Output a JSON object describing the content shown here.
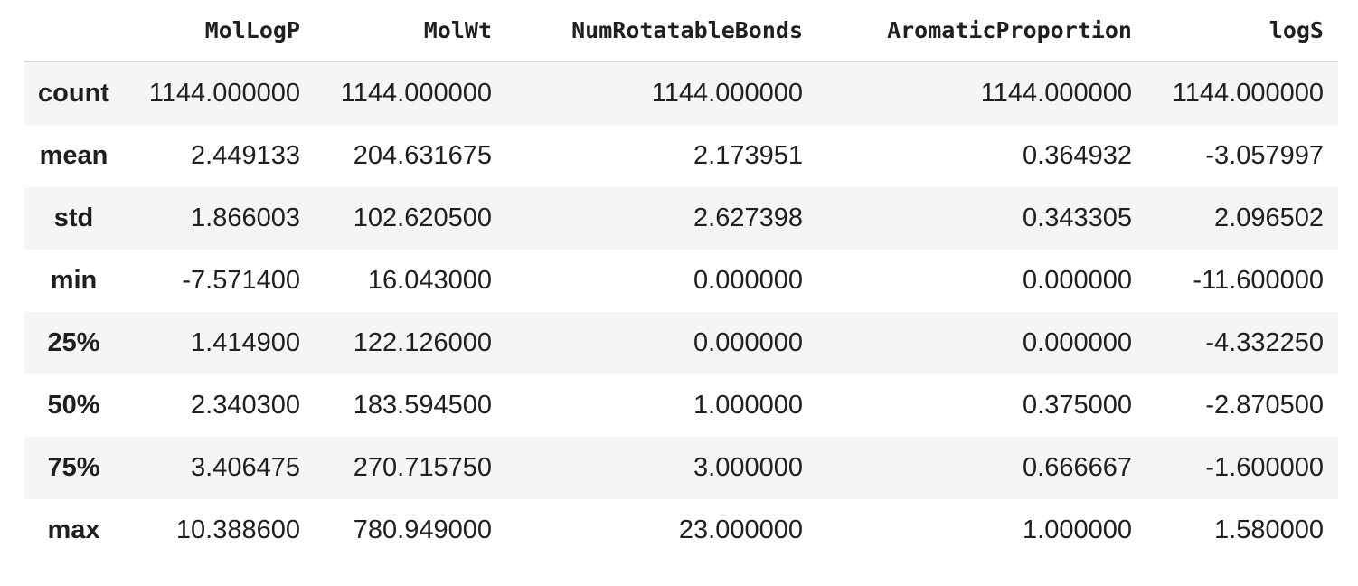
{
  "table": {
    "index_header": "",
    "columns": [
      "MolLogP",
      "MolWt",
      "NumRotatableBonds",
      "AromaticProportion",
      "logS"
    ],
    "rows": [
      {
        "label": "count",
        "values": [
          "1144.000000",
          "1144.000000",
          "1144.000000",
          "1144.000000",
          "1144.000000"
        ]
      },
      {
        "label": "mean",
        "values": [
          "2.449133",
          "204.631675",
          "2.173951",
          "0.364932",
          "-3.057997"
        ]
      },
      {
        "label": "std",
        "values": [
          "1.866003",
          "102.620500",
          "2.627398",
          "0.343305",
          "2.096502"
        ]
      },
      {
        "label": "min",
        "values": [
          "-7.571400",
          "16.043000",
          "0.000000",
          "0.000000",
          "-11.600000"
        ]
      },
      {
        "label": "25%",
        "values": [
          "1.414900",
          "122.126000",
          "0.000000",
          "0.000000",
          "-4.332250"
        ]
      },
      {
        "label": "50%",
        "values": [
          "2.340300",
          "183.594500",
          "1.000000",
          "0.375000",
          "-2.870500"
        ]
      },
      {
        "label": "75%",
        "values": [
          "3.406475",
          "270.715750",
          "3.000000",
          "0.666667",
          "-1.600000"
        ]
      },
      {
        "label": "max",
        "values": [
          "10.388600",
          "780.949000",
          "23.000000",
          "1.000000",
          "1.580000"
        ]
      }
    ]
  }
}
